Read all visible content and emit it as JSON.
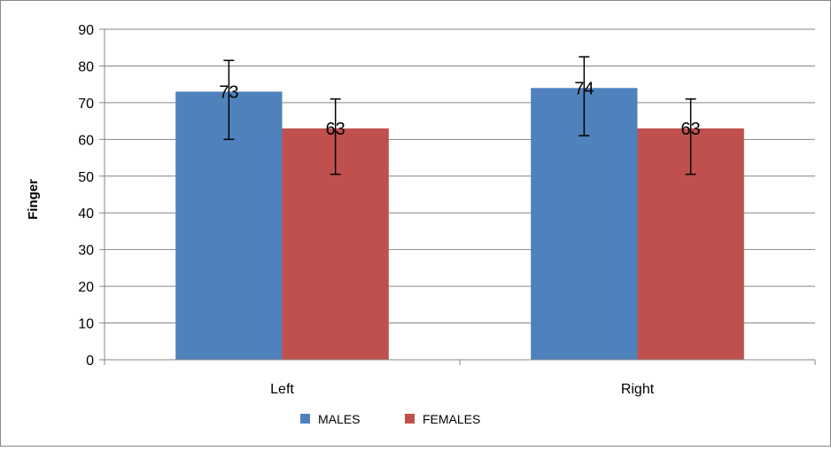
{
  "chart_data": {
    "type": "bar",
    "title": "",
    "xlabel": "",
    "ylabel": "Finger",
    "categories": [
      "Left",
      "Right"
    ],
    "ylim": [
      0,
      90
    ],
    "yticks": [
      0,
      10,
      20,
      30,
      40,
      50,
      60,
      70,
      80,
      90
    ],
    "grid": true,
    "legend_position": "bottom",
    "series": [
      {
        "name": "MALES",
        "color": "#4f81bd",
        "values": [
          73,
          74
        ],
        "error_low": [
          60,
          61
        ],
        "error_high": [
          81.5,
          82.5
        ],
        "data_labels": [
          "73",
          "74"
        ]
      },
      {
        "name": "FEMALES",
        "color": "#c0504d",
        "values": [
          63,
          63
        ],
        "error_low": [
          50.5,
          50.5
        ],
        "error_high": [
          71,
          71
        ],
        "data_labels": [
          "63",
          "63"
        ]
      }
    ]
  }
}
